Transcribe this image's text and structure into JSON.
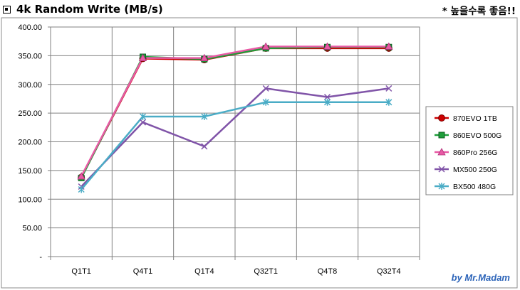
{
  "header": {
    "title": "4k Random Write (MB/s)",
    "note": "* 높을수록 좋음!!",
    "title_icon": "square-bullet-icon"
  },
  "chart_data": {
    "type": "line",
    "categories": [
      "Q1T1",
      "Q4T1",
      "Q1T4",
      "Q32T1",
      "Q4T8",
      "Q32T4"
    ],
    "series": [
      {
        "name": "870EVO 1TB",
        "color": "#cc0000",
        "marker": "circle",
        "values": [
          138,
          345,
          343,
          363,
          363,
          363
        ]
      },
      {
        "name": "860EVO 500G",
        "color": "#1e9e3a",
        "marker": "square",
        "values": [
          137,
          348,
          344,
          363,
          365,
          365
        ]
      },
      {
        "name": "860Pro 256G",
        "color": "#e85aa5",
        "marker": "triangle",
        "values": [
          140,
          346,
          346,
          366,
          366,
          366
        ]
      },
      {
        "name": "MX500 250G",
        "color": "#8054a8",
        "marker": "x",
        "values": [
          122,
          234,
          192,
          293,
          278,
          293
        ]
      },
      {
        "name": "BX500 480G",
        "color": "#4aacc6",
        "marker": "star",
        "values": [
          117,
          244,
          244,
          269,
          269,
          269
        ]
      }
    ],
    "ylim": [
      0,
      400
    ],
    "yticks": [
      "-",
      "50.00",
      "100.00",
      "150.00",
      "200.00",
      "250.00",
      "300.00",
      "350.00",
      "400.00"
    ],
    "grid": true,
    "legend_position": "right",
    "xlabel": "",
    "ylabel": "",
    "watermark": "by Mr.Madam"
  }
}
